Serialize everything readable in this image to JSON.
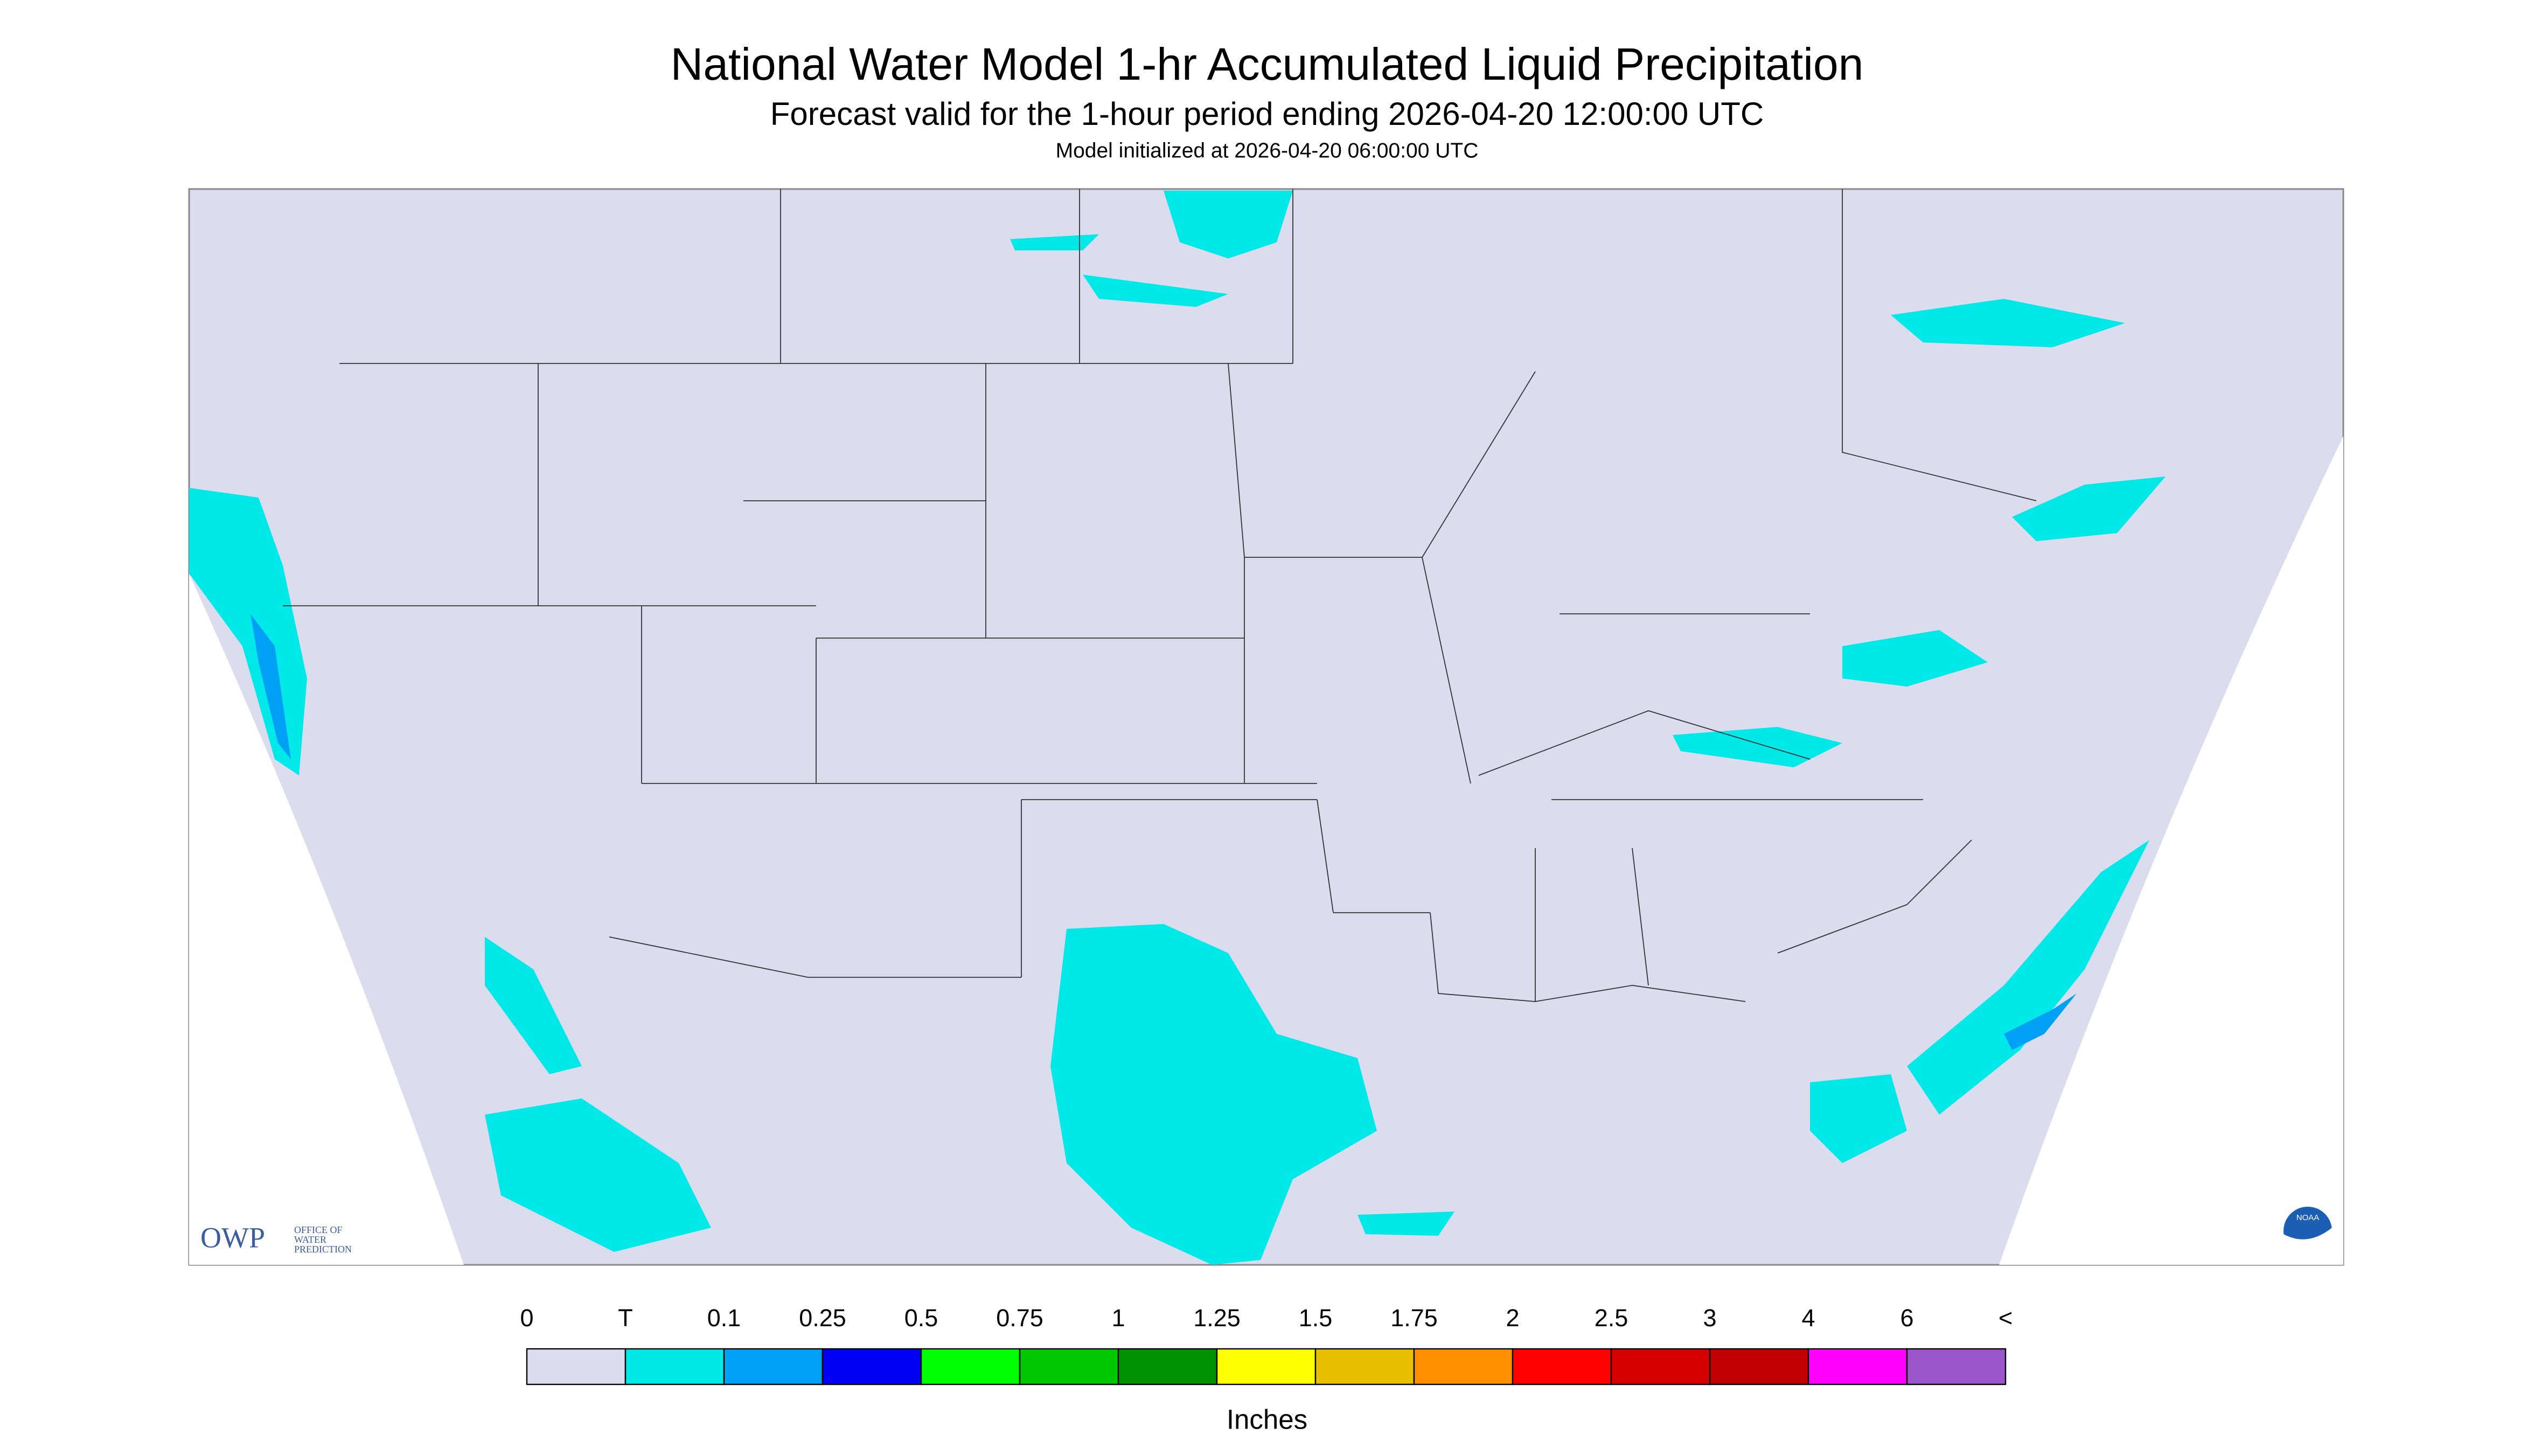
{
  "header": {
    "title": "National Water Model 1-hr Accumulated Liquid Precipitation",
    "subtitle": "Forecast valid for the 1-hour period ending 2026-04-20 12:00:00 UTC",
    "initialized": "Model initialized at 2026-04-20 06:00:00 UTC"
  },
  "legend": {
    "labels": [
      "0",
      "T",
      "0.1",
      "0.25",
      "0.5",
      "0.75",
      "1",
      "1.25",
      "1.5",
      "1.75",
      "2",
      "2.5",
      "3",
      "4",
      "6",
      "<"
    ],
    "colors": [
      "#dcdcef",
      "#00e8e8",
      "#00a0f5",
      "#0000f5",
      "#00ff00",
      "#00c800",
      "#009000",
      "#ffff00",
      "#e7c000",
      "#ff9000",
      "#ff0000",
      "#d60000",
      "#c00000",
      "#ff00ff",
      "#9955c9"
    ],
    "unit": "Inches"
  },
  "logos": {
    "owp": "OWP",
    "owp_name": [
      "OFFICE OF",
      "WATER",
      "PREDICTION"
    ],
    "noaa": "NOAA"
  }
}
